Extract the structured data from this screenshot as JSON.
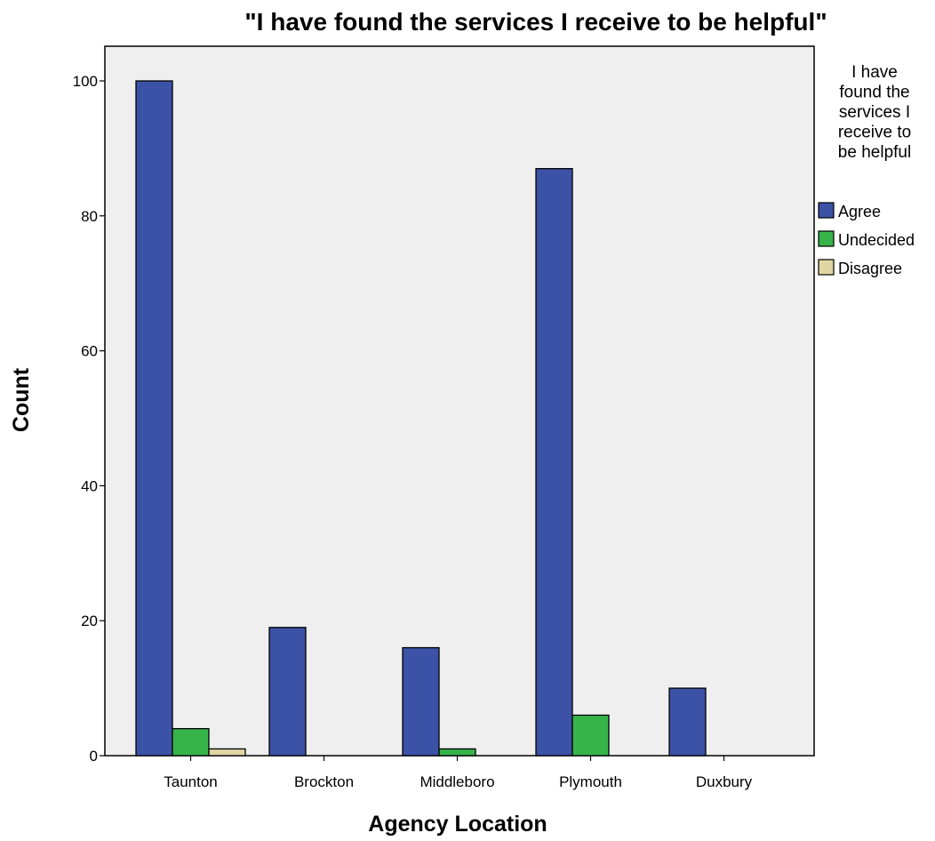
{
  "chart_data": {
    "type": "bar",
    "title": "\"I have found the services I receive to be helpful\"",
    "xlabel": "Agency Location",
    "ylabel": "Count",
    "categories": [
      "Taunton",
      "Brockton",
      "Middleboro",
      "Plymouth",
      "Duxbury"
    ],
    "series": [
      {
        "name": "Agree",
        "values": [
          100,
          19,
          16,
          87,
          10
        ],
        "color": "#3b52a6"
      },
      {
        "name": "Undecided",
        "values": [
          4,
          0,
          1,
          6,
          0
        ],
        "color": "#36b44a"
      },
      {
        "name": "Disagree",
        "values": [
          1,
          0,
          0,
          0,
          0
        ],
        "color": "#dfd6a4"
      }
    ],
    "ylim": [
      0,
      105
    ],
    "yticks": [
      0,
      20,
      40,
      60,
      80,
      100
    ],
    "legend": {
      "title_lines": [
        "I have",
        "found the",
        "services I",
        "receive to",
        "be helpful"
      ],
      "position": "right"
    },
    "grid": false,
    "plot_background": "#efefef"
  }
}
